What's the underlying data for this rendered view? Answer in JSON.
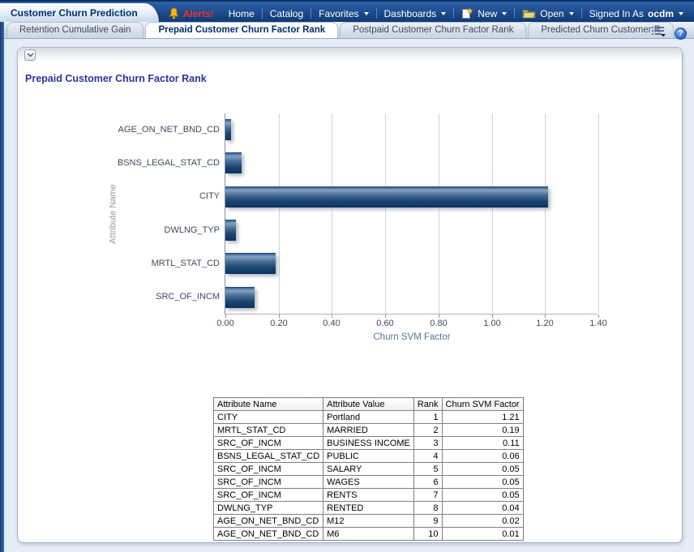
{
  "header": {
    "brand_tab": "Customer Churn Prediction",
    "links": [
      {
        "label": "Alerts!",
        "icon": "bell-icon",
        "alert": true,
        "sep": false,
        "caret": false
      },
      {
        "label": "Home",
        "sep": false,
        "caret": false
      },
      {
        "label": "Catalog",
        "sep": true,
        "caret": false
      },
      {
        "label": "Favorites",
        "sep": true,
        "caret": true
      },
      {
        "label": "Dashboards",
        "sep": true,
        "caret": true
      },
      {
        "label": "New",
        "icon": "new-page-icon",
        "sep": true,
        "caret": true
      },
      {
        "label": "Open",
        "icon": "open-folder-icon",
        "sep": true,
        "caret": true
      },
      {
        "label": "Signed In As",
        "user": "ocdm",
        "sep": true,
        "caret": true
      }
    ]
  },
  "tabs": {
    "items": [
      {
        "label": "Retention Cumulative Gain",
        "active": false
      },
      {
        "label": "Prepaid Customer Churn Factor Rank",
        "active": true
      },
      {
        "label": "Postpaid Customer Churn Factor Rank",
        "active": false
      },
      {
        "label": "Predicted Churn Customer R",
        "active": false
      }
    ],
    "overflow": "»",
    "help_glyph": "?"
  },
  "panel": {
    "title": "Prepaid Customer Churn Factor Rank"
  },
  "chart_data": {
    "type": "bar",
    "orientation": "horizontal",
    "title": "",
    "categories": [
      "AGE_ON_NET_BND_CD",
      "BSNS_LEGAL_STAT_CD",
      "CITY",
      "DWLNG_TYP",
      "MRTL_STAT_CD",
      "SRC_OF_INCM"
    ],
    "values": [
      0.02,
      0.06,
      1.21,
      0.04,
      0.19,
      0.11
    ],
    "xlabel": "Churn SVM Factor",
    "ylabel": "Attribute Name",
    "xlim": [
      0,
      1.4
    ],
    "xticks": [
      "0.00",
      "0.20",
      "0.40",
      "0.60",
      "0.80",
      "1.00",
      "1.20",
      "1.40"
    ],
    "grid": true,
    "legend": false
  },
  "table": {
    "columns": [
      "Attribute Name",
      "Attribute Value",
      "Rank",
      "Churn SVM Factor"
    ],
    "rows": [
      [
        "CITY",
        "Portland",
        "1",
        "1.21"
      ],
      [
        "MRTL_STAT_CD",
        "MARRIED",
        "2",
        "0.19"
      ],
      [
        "SRC_OF_INCM",
        "BUSINESS INCOME",
        "3",
        "0.11"
      ],
      [
        "BSNS_LEGAL_STAT_CD",
        "PUBLIC",
        "4",
        "0.06"
      ],
      [
        "SRC_OF_INCM",
        "SALARY",
        "5",
        "0.05"
      ],
      [
        "SRC_OF_INCM",
        "WAGES",
        "6",
        "0.05"
      ],
      [
        "SRC_OF_INCM",
        "RENTS",
        "7",
        "0.05"
      ],
      [
        "DWLNG_TYP",
        "RENTED",
        "8",
        "0.04"
      ],
      [
        "AGE_ON_NET_BND_CD",
        "M12",
        "9",
        "0.02"
      ],
      [
        "AGE_ON_NET_BND_CD",
        "M6",
        "10",
        "0.01"
      ]
    ]
  },
  "colors": {
    "header_navy": "#16417e",
    "alert_red": "#f23030",
    "bar_navy": "#17406f",
    "active_tab_text": "#003069",
    "panel_title_text": "#2d339c"
  }
}
